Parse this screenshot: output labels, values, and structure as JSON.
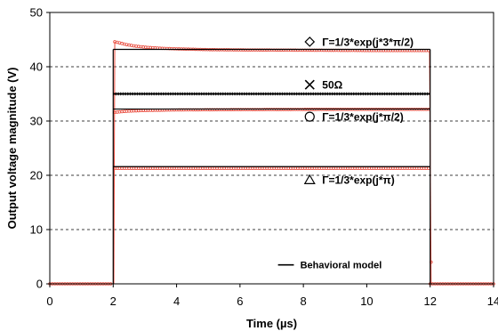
{
  "chart_data": {
    "type": "line",
    "xlabel": "Time (µs)",
    "ylabel": "Output voltage magnitude (V)",
    "xlim": [
      0,
      14
    ],
    "ylim": [
      0,
      50
    ],
    "x_ticks": [
      0,
      2,
      4,
      6,
      8,
      10,
      12,
      14
    ],
    "y_ticks": [
      0,
      10,
      20,
      30,
      40,
      50
    ],
    "grid": "horizontal",
    "legend": {
      "label": "Behavioral model",
      "placement": "bottom-right"
    },
    "colors": {
      "model": "#000000",
      "measured": "#e8483a",
      "fifty_ohm": "#222222"
    },
    "pulse": {
      "start": 2,
      "end": 12
    },
    "series": [
      {
        "name": "Γ=1/3*exp(j*3*π/2)",
        "marker": "diamond",
        "model_level": 43.2,
        "points": [
          [
            2.05,
            44.6
          ],
          [
            2.2,
            44.4
          ],
          [
            2.4,
            44.1
          ],
          [
            2.7,
            43.8
          ],
          [
            3.0,
            43.6
          ],
          [
            3.5,
            43.4
          ],
          [
            4.0,
            43.3
          ],
          [
            5.0,
            43.15
          ],
          [
            6.0,
            43.1
          ],
          [
            8.0,
            43.05
          ],
          [
            10.0,
            43.0
          ],
          [
            11.9,
            43.0
          ]
        ],
        "label_x": 8.2,
        "label_y": 44.6
      },
      {
        "name": "50Ω",
        "marker": "cross",
        "model_level": 35.0,
        "points": [
          [
            2.05,
            35.0
          ],
          [
            6.0,
            35.0
          ],
          [
            11.9,
            35.0
          ]
        ],
        "label_x": 8.2,
        "label_y": 36.7
      },
      {
        "name": "Γ=1/3*exp(j*π/2)",
        "marker": "circle",
        "model_level": 32.2,
        "points": [
          [
            2.05,
            31.6
          ],
          [
            2.4,
            31.8
          ],
          [
            3.0,
            31.95
          ],
          [
            4.0,
            32.05
          ],
          [
            6.0,
            32.1
          ],
          [
            9.0,
            32.15
          ],
          [
            11.9,
            32.15
          ]
        ],
        "label_x": 8.2,
        "label_y": 30.8
      },
      {
        "name": "Γ=1/3*exp(j*π)",
        "marker": "triangle",
        "model_level": 21.6,
        "points": [
          [
            2.05,
            21.3
          ],
          [
            6.0,
            21.3
          ],
          [
            11.9,
            21.3
          ]
        ],
        "label_x": 8.2,
        "label_y": 19.2
      }
    ]
  }
}
